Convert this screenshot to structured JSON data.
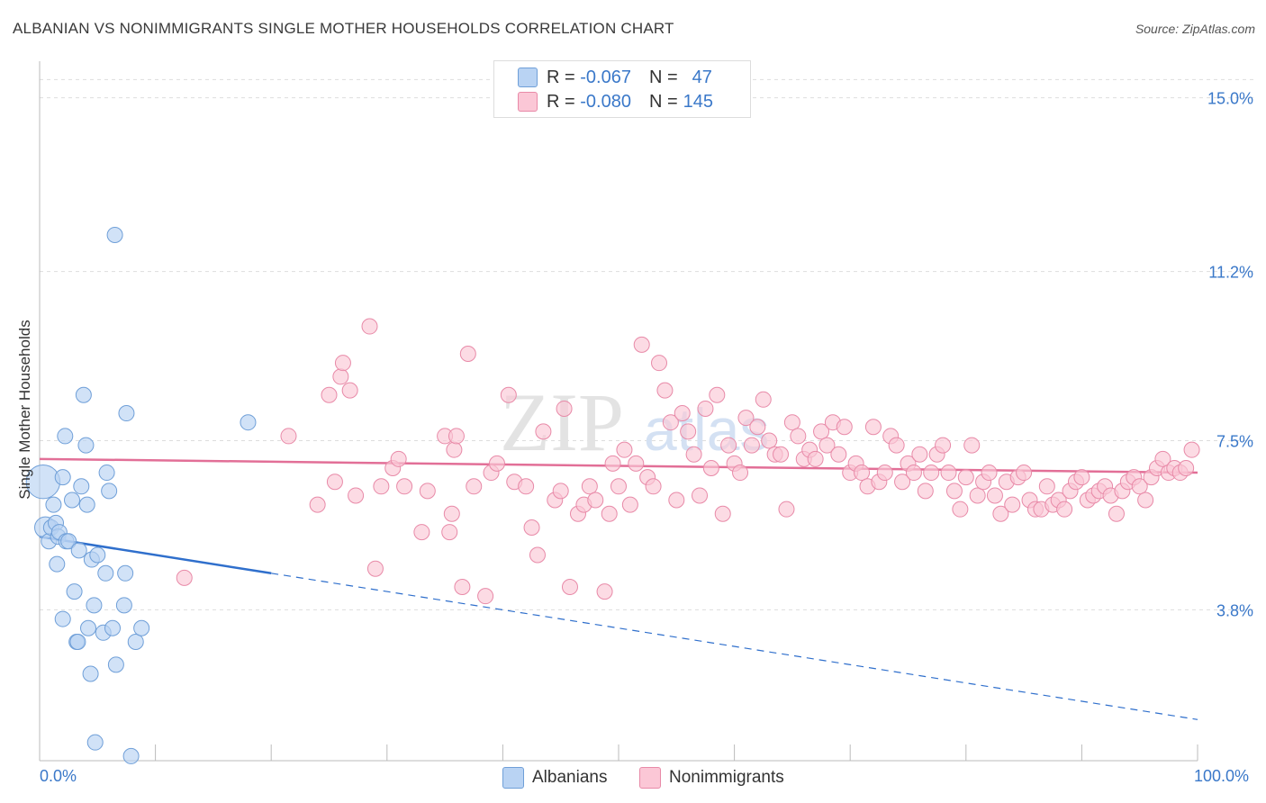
{
  "header": {
    "title": "ALBANIAN VS NONIMMIGRANTS SINGLE MOTHER HOUSEHOLDS CORRELATION CHART",
    "source": "Source: ZipAtlas.com"
  },
  "legend_top": {
    "rows": [
      {
        "r_label": "R =",
        "r_value": "-0.067",
        "n_label": "N =",
        "n_value": "47"
      },
      {
        "r_label": "R =",
        "r_value": "-0.080",
        "n_label": "N =",
        "n_value": "145"
      }
    ]
  },
  "legend_bottom": {
    "items": [
      "Albanians",
      "Nonimmigrants"
    ]
  },
  "axes": {
    "ylabel": "Single Mother Households",
    "x_min_label": "0.0%",
    "x_max_label": "100.0%"
  },
  "watermark": {
    "text_zip": "ZIP",
    "text_atlas": "atlas"
  },
  "colors": {
    "albanians_fill": "#b9d3f3",
    "albanians_stroke": "#6f9fd8",
    "albanians_line": "#2f6fcc",
    "nonimmigrants_fill": "#fbc7d6",
    "nonimmigrants_stroke": "#e88aa8",
    "nonimmigrants_line": "#e26f97",
    "tick_label": "#3a78c9",
    "grid": "#dddddd"
  },
  "chart_data": {
    "type": "scatter",
    "title": "ALBANIAN VS NONIMMIGRANTS SINGLE MOTHER HOUSEHOLDS CORRELATION CHART",
    "xlabel": "",
    "ylabel": "Single Mother Households",
    "xlim": [
      0,
      100
    ],
    "ylim": [
      0.5,
      15.8
    ],
    "yticks": [
      3.8,
      7.5,
      11.2,
      15.0
    ],
    "ytick_labels": [
      "3.8%",
      "7.5%",
      "11.2%",
      "15.0%"
    ],
    "xtick_labels": [
      "0.0%",
      "100.0%"
    ],
    "grid": true,
    "legend_position": "top-center",
    "series": [
      {
        "name": "Albanians",
        "R": -0.067,
        "N": 47,
        "trend": {
          "x0": 0,
          "y0": 5.4,
          "x1": 20,
          "y1": 4.6,
          "dashed_to_x": 100,
          "dashed_to_y": 1.4
        },
        "points": [
          [
            0.3,
            6.6,
            2.2
          ],
          [
            0.5,
            5.6,
            1.4
          ],
          [
            0.8,
            5.3,
            1
          ],
          [
            1.0,
            5.6,
            1
          ],
          [
            1.2,
            6.1,
            1
          ],
          [
            1.4,
            5.7,
            1
          ],
          [
            1.5,
            4.8,
            1
          ],
          [
            1.6,
            5.4,
            1
          ],
          [
            1.7,
            5.5,
            1
          ],
          [
            2.0,
            6.7,
            1
          ],
          [
            2.0,
            3.6,
            1
          ],
          [
            2.2,
            7.6,
            1
          ],
          [
            2.3,
            5.3,
            1
          ],
          [
            2.5,
            5.3,
            1
          ],
          [
            2.8,
            6.2,
            1
          ],
          [
            3.0,
            4.2,
            1
          ],
          [
            3.2,
            3.1,
            1
          ],
          [
            3.3,
            3.1,
            1
          ],
          [
            3.4,
            5.1,
            1
          ],
          [
            3.6,
            6.5,
            1
          ],
          [
            3.8,
            8.5,
            1
          ],
          [
            4.0,
            7.4,
            1
          ],
          [
            4.1,
            6.1,
            1
          ],
          [
            4.2,
            3.4,
            1
          ],
          [
            4.4,
            2.4,
            1
          ],
          [
            4.5,
            4.9,
            1
          ],
          [
            4.7,
            3.9,
            1
          ],
          [
            4.8,
            0.9,
            1
          ],
          [
            5.0,
            5.0,
            1
          ],
          [
            5.5,
            3.3,
            1
          ],
          [
            5.7,
            4.6,
            1
          ],
          [
            5.8,
            6.8,
            1
          ],
          [
            6.0,
            6.4,
            1
          ],
          [
            6.3,
            3.4,
            1
          ],
          [
            6.5,
            12.0,
            1
          ],
          [
            6.6,
            2.6,
            1
          ],
          [
            7.4,
            4.6,
            1
          ],
          [
            7.5,
            8.1,
            1
          ],
          [
            7.3,
            3.9,
            1
          ],
          [
            7.9,
            0.6,
            1
          ],
          [
            8.3,
            3.1,
            1
          ],
          [
            8.8,
            3.4,
            1
          ],
          [
            18.0,
            7.9,
            1
          ]
        ]
      },
      {
        "name": "Nonimmigrants",
        "R": -0.08,
        "N": 145,
        "trend": {
          "x0": 0,
          "y0": 7.1,
          "x1": 100,
          "y1": 6.8
        },
        "points": [
          [
            12.5,
            4.5,
            1
          ],
          [
            21.5,
            7.6,
            1
          ],
          [
            24.0,
            6.1,
            1
          ],
          [
            25.0,
            8.5,
            1
          ],
          [
            25.5,
            6.6,
            1
          ],
          [
            26.0,
            8.9,
            1
          ],
          [
            26.2,
            9.2,
            1
          ],
          [
            26.8,
            8.6,
            1
          ],
          [
            27.3,
            6.3,
            1
          ],
          [
            28.5,
            10.0,
            1
          ],
          [
            29.0,
            4.7,
            1
          ],
          [
            29.5,
            6.5,
            1
          ],
          [
            30.5,
            6.9,
            1
          ],
          [
            31.0,
            7.1,
            1
          ],
          [
            31.5,
            6.5,
            1
          ],
          [
            33.0,
            5.5,
            1
          ],
          [
            33.5,
            6.4,
            1
          ],
          [
            35.0,
            7.6,
            1
          ],
          [
            35.4,
            5.5,
            1
          ],
          [
            35.6,
            5.9,
            1
          ],
          [
            35.8,
            7.3,
            1
          ],
          [
            36.0,
            7.6,
            1
          ],
          [
            36.5,
            4.3,
            1
          ],
          [
            37.0,
            9.4,
            1
          ],
          [
            37.5,
            6.5,
            1
          ],
          [
            38.5,
            4.1,
            1
          ],
          [
            39.0,
            6.8,
            1
          ],
          [
            39.5,
            7.0,
            1
          ],
          [
            40.5,
            8.5,
            1
          ],
          [
            41.0,
            6.6,
            1
          ],
          [
            42.0,
            6.5,
            1
          ],
          [
            42.5,
            5.6,
            1
          ],
          [
            43.0,
            5.0,
            1
          ],
          [
            43.5,
            7.7,
            1
          ],
          [
            44.5,
            6.2,
            1
          ],
          [
            45.0,
            6.4,
            1
          ],
          [
            45.3,
            8.2,
            1
          ],
          [
            45.8,
            4.3,
            1
          ],
          [
            46.5,
            5.9,
            1
          ],
          [
            47.0,
            6.1,
            1
          ],
          [
            47.5,
            6.5,
            1
          ],
          [
            48.0,
            6.2,
            1
          ],
          [
            48.8,
            4.2,
            1
          ],
          [
            49.2,
            5.9,
            1
          ],
          [
            49.5,
            7.0,
            1
          ],
          [
            50.0,
            6.5,
            1
          ],
          [
            50.5,
            7.3,
            1
          ],
          [
            51.0,
            6.1,
            1
          ],
          [
            51.5,
            7.0,
            1
          ],
          [
            52.0,
            9.6,
            1
          ],
          [
            52.5,
            6.7,
            1
          ],
          [
            53.0,
            6.5,
            1
          ],
          [
            53.5,
            9.2,
            1
          ],
          [
            54.0,
            8.6,
            1
          ],
          [
            54.5,
            7.9,
            1
          ],
          [
            55.0,
            6.2,
            1
          ],
          [
            55.5,
            8.1,
            1
          ],
          [
            56.0,
            7.7,
            1
          ],
          [
            56.5,
            7.2,
            1
          ],
          [
            57.0,
            6.3,
            1
          ],
          [
            57.5,
            8.2,
            1
          ],
          [
            58.0,
            6.9,
            1
          ],
          [
            58.5,
            8.5,
            1
          ],
          [
            59.0,
            5.9,
            1
          ],
          [
            59.5,
            7.4,
            1
          ],
          [
            60.0,
            7.0,
            1
          ],
          [
            60.5,
            6.8,
            1
          ],
          [
            61.0,
            8.0,
            1
          ],
          [
            61.5,
            7.4,
            1
          ],
          [
            62.0,
            7.8,
            1
          ],
          [
            62.5,
            8.4,
            1
          ],
          [
            63.0,
            7.5,
            1
          ],
          [
            63.5,
            7.2,
            1
          ],
          [
            64.0,
            7.2,
            1
          ],
          [
            64.5,
            6.0,
            1
          ],
          [
            65.0,
            7.9,
            1
          ],
          [
            65.5,
            7.6,
            1
          ],
          [
            66.0,
            7.1,
            1
          ],
          [
            66.5,
            7.3,
            1
          ],
          [
            67.0,
            7.1,
            1
          ],
          [
            67.5,
            7.7,
            1
          ],
          [
            68.0,
            7.4,
            1
          ],
          [
            68.5,
            7.9,
            1
          ],
          [
            69.0,
            7.2,
            1
          ],
          [
            69.5,
            7.8,
            1
          ],
          [
            70.0,
            6.8,
            1
          ],
          [
            70.5,
            7.0,
            1
          ],
          [
            71.0,
            6.8,
            1
          ],
          [
            71.5,
            6.5,
            1
          ],
          [
            72.0,
            7.8,
            1
          ],
          [
            72.5,
            6.6,
            1
          ],
          [
            73.0,
            6.8,
            1
          ],
          [
            73.5,
            7.6,
            1
          ],
          [
            74.0,
            7.4,
            1
          ],
          [
            74.5,
            6.6,
            1
          ],
          [
            75.0,
            7.0,
            1
          ],
          [
            75.5,
            6.8,
            1
          ],
          [
            76.0,
            7.2,
            1
          ],
          [
            76.5,
            6.4,
            1
          ],
          [
            77.0,
            6.8,
            1
          ],
          [
            77.5,
            7.2,
            1
          ],
          [
            78.0,
            7.4,
            1
          ],
          [
            78.5,
            6.8,
            1
          ],
          [
            79.0,
            6.4,
            1
          ],
          [
            79.5,
            6.0,
            1
          ],
          [
            80.0,
            6.7,
            1
          ],
          [
            80.5,
            7.4,
            1
          ],
          [
            81.0,
            6.3,
            1
          ],
          [
            81.5,
            6.6,
            1
          ],
          [
            82.0,
            6.8,
            1
          ],
          [
            82.5,
            6.3,
            1
          ],
          [
            83.0,
            5.9,
            1
          ],
          [
            83.5,
            6.6,
            1
          ],
          [
            84.0,
            6.1,
            1
          ],
          [
            84.5,
            6.7,
            1
          ],
          [
            85.0,
            6.8,
            1
          ],
          [
            85.5,
            6.2,
            1
          ],
          [
            86.0,
            6.0,
            1
          ],
          [
            86.5,
            6.0,
            1
          ],
          [
            87.0,
            6.5,
            1
          ],
          [
            87.5,
            6.1,
            1
          ],
          [
            88.0,
            6.2,
            1
          ],
          [
            88.5,
            6.0,
            1
          ],
          [
            89.0,
            6.4,
            1
          ],
          [
            89.5,
            6.6,
            1
          ],
          [
            90.0,
            6.7,
            1
          ],
          [
            90.5,
            6.2,
            1
          ],
          [
            91.0,
            6.3,
            1
          ],
          [
            91.5,
            6.4,
            1
          ],
          [
            92.0,
            6.5,
            1
          ],
          [
            92.5,
            6.3,
            1
          ],
          [
            93.0,
            5.9,
            1
          ],
          [
            93.5,
            6.4,
            1
          ],
          [
            94.0,
            6.6,
            1
          ],
          [
            94.5,
            6.7,
            1
          ],
          [
            95.0,
            6.5,
            1
          ],
          [
            95.5,
            6.2,
            1
          ],
          [
            96.0,
            6.7,
            1
          ],
          [
            96.5,
            6.9,
            1
          ],
          [
            97.0,
            7.1,
            1
          ],
          [
            97.5,
            6.8,
            1
          ],
          [
            98.0,
            6.9,
            1
          ],
          [
            98.5,
            6.8,
            1
          ],
          [
            99.0,
            6.9,
            1
          ],
          [
            99.5,
            7.3,
            1
          ]
        ]
      }
    ]
  }
}
